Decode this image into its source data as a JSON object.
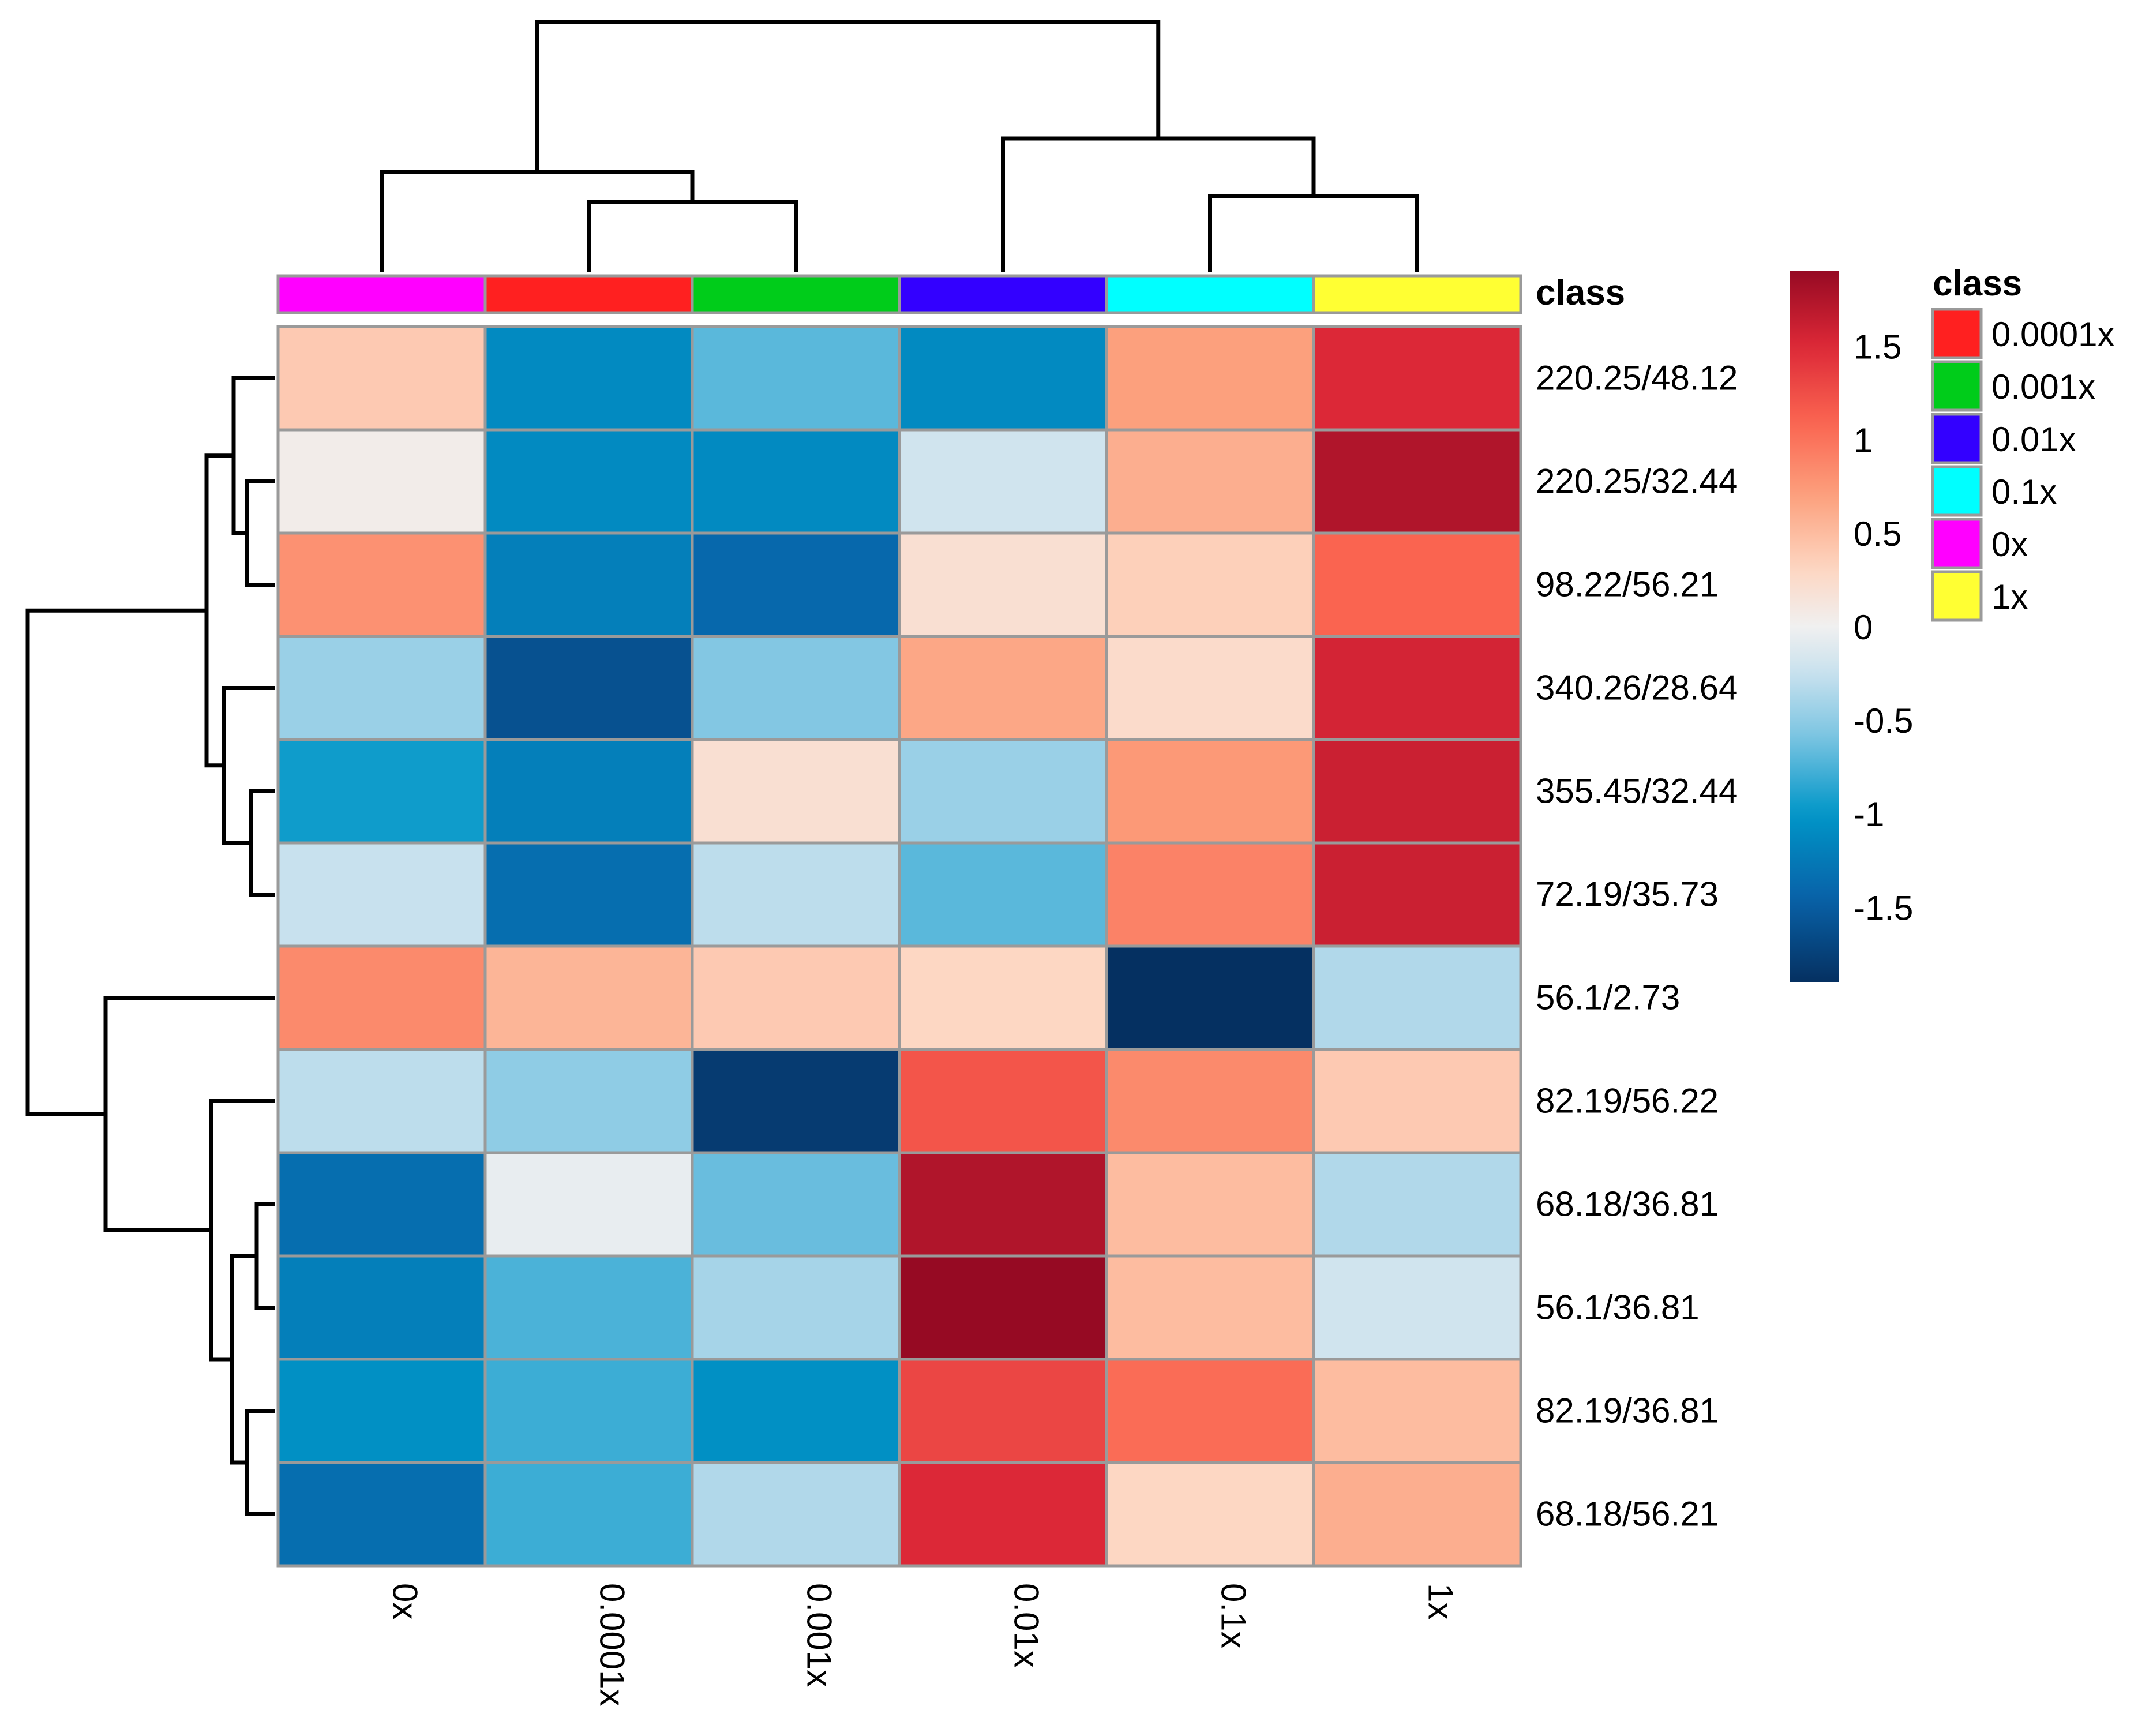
{
  "chart_data": {
    "type": "heatmap",
    "columns": [
      "0x",
      "0.0001x",
      "0.001x",
      "0.01x",
      "0.1x",
      "1x"
    ],
    "rows": [
      "220.25/48.12",
      "220.25/32.44",
      "98.22/56.21",
      "340.26/28.64",
      "355.45/32.44",
      "72.19/35.73",
      "56.1/2.73",
      "82.19/56.22",
      "68.18/36.81",
      "56.1/36.81",
      "82.19/36.81",
      "68.18/56.21"
    ],
    "values": [
      [
        0.4,
        -1.1,
        -0.7,
        -1.1,
        0.7,
        1.5
      ],
      [
        0.05,
        -1.1,
        -1.1,
        -0.2,
        0.6,
        1.75
      ],
      [
        0.8,
        -1.2,
        -1.4,
        0.2,
        0.35,
        1.1
      ],
      [
        -0.45,
        -1.6,
        -0.55,
        0.65,
        0.25,
        1.55
      ],
      [
        -0.95,
        -1.2,
        0.2,
        -0.45,
        0.75,
        1.6
      ],
      [
        -0.25,
        -1.35,
        -0.3,
        -0.7,
        0.9,
        1.6
      ],
      [
        0.85,
        0.55,
        0.4,
        0.3,
        -2.0,
        -0.35
      ],
      [
        -0.3,
        -0.5,
        -1.8,
        1.2,
        0.85,
        0.4
      ],
      [
        -1.35,
        -0.05,
        -0.65,
        1.75,
        0.5,
        -0.35
      ],
      [
        -1.2,
        -0.75,
        -0.4,
        1.95,
        0.5,
        -0.2
      ],
      [
        -1.05,
        -0.8,
        -1.05,
        1.3,
        1.05,
        0.5
      ],
      [
        -1.35,
        -0.8,
        -0.35,
        1.5,
        0.3,
        0.6
      ]
    ],
    "column_classes": [
      "0x",
      "0.0001x",
      "0.001x",
      "0.01x",
      "0.1x",
      "1x"
    ],
    "annotation_title": "class",
    "color_scale": {
      "title": "",
      "range": [
        -1.9,
        1.9
      ],
      "ticks": [
        1.5,
        1,
        0.5,
        0,
        -0.5,
        -1,
        -1.5
      ],
      "tick_labels": [
        "1.5",
        "1",
        "0.5",
        "0",
        "-0.5",
        "-1",
        "-1.5"
      ],
      "low_color": "#053061",
      "mid_color": "#f7f7f7",
      "high_color": "#67001f"
    },
    "legend": {
      "title": "class",
      "entries": [
        {
          "label": "0.0001x",
          "color": "#ff2020"
        },
        {
          "label": "0.001x",
          "color": "#00cc1a"
        },
        {
          "label": "0.01x",
          "color": "#3300ff"
        },
        {
          "label": "0.1x",
          "color": "#00ffff"
        },
        {
          "label": "0x",
          "color": "#ff00ff"
        },
        {
          "label": "1x",
          "color": "#ffff33"
        }
      ]
    }
  }
}
